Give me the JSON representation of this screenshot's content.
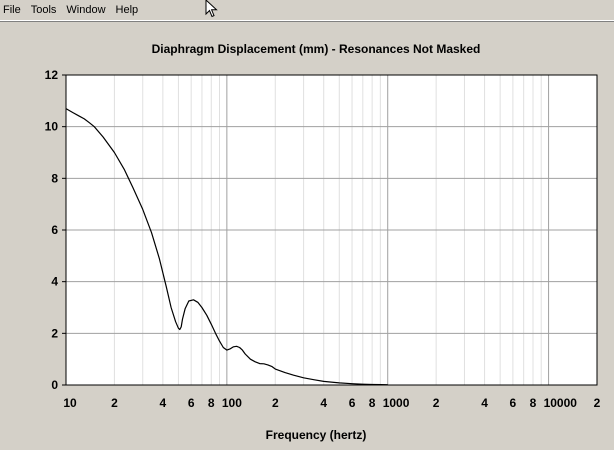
{
  "menu": {
    "items": [
      {
        "id": "file",
        "label": "File"
      },
      {
        "id": "tools",
        "label": "Tools"
      },
      {
        "id": "window",
        "label": "Window"
      },
      {
        "id": "help",
        "label": "Help"
      }
    ]
  },
  "chart_data": {
    "type": "line",
    "title": "Diaphragm Displacement (mm) - Resonances Not Masked",
    "xlabel": "Frequency (hertz)",
    "ylabel": "",
    "x_scale": "log",
    "xlim": [
      10,
      20000
    ],
    "ylim": [
      0,
      12
    ],
    "y_ticks": [
      {
        "value": 0,
        "label": "0"
      },
      {
        "value": 2,
        "label": "2"
      },
      {
        "value": 4,
        "label": "4"
      },
      {
        "value": 6,
        "label": "6"
      },
      {
        "value": 8,
        "label": "8"
      },
      {
        "value": 10,
        "label": "10"
      },
      {
        "value": 12,
        "label": "12"
      }
    ],
    "x_ticks": [
      {
        "value": 10,
        "label": "10"
      },
      {
        "value": 20,
        "label": "2"
      },
      {
        "value": 40,
        "label": "4"
      },
      {
        "value": 60,
        "label": "6"
      },
      {
        "value": 80,
        "label": "8"
      },
      {
        "value": 100,
        "label": "100"
      },
      {
        "value": 200,
        "label": "2"
      },
      {
        "value": 400,
        "label": "4"
      },
      {
        "value": 600,
        "label": "6"
      },
      {
        "value": 800,
        "label": "8"
      },
      {
        "value": 1000,
        "label": "1000"
      },
      {
        "value": 2000,
        "label": "2"
      },
      {
        "value": 4000,
        "label": "4"
      },
      {
        "value": 6000,
        "label": "6"
      },
      {
        "value": 8000,
        "label": "8"
      },
      {
        "value": 10000,
        "label": "10000"
      },
      {
        "value": 20000,
        "label": "2"
      }
    ],
    "grid": true,
    "colors": {
      "line": "#000000",
      "plot_bg": "#ffffff",
      "major_grid": "#a0a0a0",
      "minor_grid": "#e0e0e0"
    },
    "series": [
      {
        "x": [
          10,
          11,
          12,
          13,
          14,
          15,
          17,
          20,
          23,
          26,
          30,
          34,
          38,
          42,
          45,
          48,
          50,
          51,
          52,
          53,
          55,
          58,
          62,
          66,
          70,
          75,
          80,
          85,
          90,
          95,
          100,
          105,
          110,
          115,
          120,
          125,
          130,
          140,
          150,
          160,
          170,
          180,
          190,
          200,
          230,
          260,
          300,
          350,
          400,
          500,
          600,
          700,
          800,
          1000
        ],
        "y": [
          10.7,
          10.55,
          10.42,
          10.3,
          10.15,
          10.0,
          9.6,
          9.0,
          8.35,
          7.65,
          6.8,
          5.9,
          4.9,
          3.8,
          3.0,
          2.45,
          2.2,
          2.15,
          2.25,
          2.55,
          2.95,
          3.25,
          3.3,
          3.2,
          3.0,
          2.7,
          2.35,
          2.0,
          1.7,
          1.45,
          1.35,
          1.4,
          1.48,
          1.5,
          1.45,
          1.35,
          1.2,
          1.0,
          0.9,
          0.83,
          0.82,
          0.78,
          0.72,
          0.62,
          0.48,
          0.38,
          0.28,
          0.2,
          0.14,
          0.08,
          0.05,
          0.03,
          0.02,
          0.01
        ]
      }
    ]
  }
}
